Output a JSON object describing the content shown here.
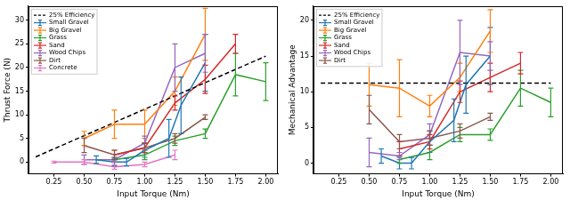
{
  "chart_data": [
    {
      "type": "line",
      "y_label": "Thrust Force (N)",
      "x_label": "Input Torque (Nm)",
      "xlim": [
        0.04,
        2.1
      ],
      "xticks": [
        0.25,
        {
          "value": 0.5,
          "label": "0.50"
        },
        0.75,
        {
          "value": 1,
          "label": "1.00"
        },
        1.25,
        {
          "value": 1.5,
          "label": "1.50"
        },
        1.75,
        {
          "value": 2,
          "label": "2.00"
        }
      ],
      "ylim": [
        -2.5,
        33
      ],
      "yticks": [
        0,
        5,
        10,
        15,
        20,
        25,
        30
      ],
      "grid": false,
      "legend": "upper left",
      "series": [
        {
          "name": "25% Efficiency",
          "color": "#000000",
          "line_style": "dashed",
          "x": [
            0.1,
            2.0
          ],
          "values": [
            1.1,
            22.4
          ]
        },
        {
          "name": "Small Gravel",
          "color": "#1f77b4",
          "x": [
            0.6,
            0.75,
            0.85,
            1.0,
            1.2,
            1.3,
            1.5
          ],
          "values": [
            0.5,
            0,
            0,
            2.5,
            5,
            12,
            21
          ],
          "errors": [
            0.8,
            0.8,
            0.8,
            1.5,
            4,
            6,
            6
          ]
        },
        {
          "name": "Big Gravel",
          "color": "#ff7f0e",
          "x": [
            0.5,
            0.75,
            1.0,
            1.25,
            1.5
          ],
          "values": [
            5,
            8,
            8,
            15,
            27
          ],
          "errors": [
            1.5,
            3,
            3,
            3,
            5.5
          ]
        },
        {
          "name": "Grass",
          "color": "#2ca02c",
          "x": [
            0.75,
            1.0,
            1.25,
            1.5,
            1.75,
            2.0
          ],
          "values": [
            0.5,
            1.5,
            4.5,
            6,
            18.5,
            17
          ],
          "errors": [
            0.5,
            1,
            1,
            1,
            4.5,
            4
          ]
        },
        {
          "name": "Sand",
          "color": "#d62728",
          "x": [
            0.75,
            1.0,
            1.25,
            1.5,
            1.75
          ],
          "values": [
            1.5,
            3,
            12.5,
            17.5,
            25
          ],
          "errors": [
            1,
            1,
            1.5,
            3,
            2
          ]
        },
        {
          "name": "Wood Chips",
          "color": "#9467bd",
          "x": [
            0.5,
            0.75,
            1.0,
            1.25,
            1.5
          ],
          "values": [
            0.5,
            0.5,
            4,
            20,
            23
          ],
          "errors": [
            1,
            0.5,
            1.5,
            5,
            4
          ]
        },
        {
          "name": "Dirt",
          "color": "#8c564b",
          "x": [
            0.5,
            0.75,
            1.0,
            1.25,
            1.5
          ],
          "values": [
            3.5,
            1.5,
            3,
            5,
            9.5
          ],
          "errors": [
            1.5,
            1,
            1,
            1,
            0.5
          ]
        },
        {
          "name": "Concrete",
          "color": "#e377c2",
          "x": [
            0.25,
            0.5,
            0.75,
            1.0,
            1.25
          ],
          "values": [
            0,
            0,
            -1,
            -0.5,
            1.5
          ],
          "errors": [
            0.2,
            0.5,
            0.5,
            0.5,
            1
          ]
        }
      ]
    },
    {
      "type": "line",
      "y_label": "Mechanical Advantage",
      "x_label": "Input Torque (Nm)",
      "xlim": [
        0.04,
        2.1
      ],
      "xticks": [
        0.25,
        {
          "value": 0.5,
          "label": "0.50"
        },
        0.75,
        {
          "value": 1,
          "label": "1.00"
        },
        1.25,
        {
          "value": 1.5,
          "label": "1.50"
        },
        1.75,
        {
          "value": 2,
          "label": "2.00"
        }
      ],
      "ylim": [
        -1.5,
        22
      ],
      "yticks": [
        0,
        5,
        10,
        15,
        20
      ],
      "grid": false,
      "legend": "upper left",
      "series": [
        {
          "name": "25% Efficiency",
          "color": "#000000",
          "line_style": "dashed",
          "x": [
            0.1,
            2.0
          ],
          "values": [
            11.2,
            11.2
          ]
        },
        {
          "name": "Small Gravel",
          "color": "#1f77b4",
          "x": [
            0.6,
            0.75,
            0.85,
            1.0,
            1.2,
            1.3,
            1.5
          ],
          "values": [
            1,
            0,
            0,
            3,
            6,
            11,
            15
          ],
          "errors": [
            1,
            0.8,
            0.8,
            1.5,
            3,
            4,
            4
          ]
        },
        {
          "name": "Big Gravel",
          "color": "#ff7f0e",
          "x": [
            0.5,
            0.75,
            1.0,
            1.25,
            1.5
          ],
          "values": [
            11,
            10.5,
            8,
            12,
            18.5
          ],
          "errors": [
            3,
            4,
            1.5,
            2,
            3
          ]
        },
        {
          "name": "Grass",
          "color": "#2ca02c",
          "x": [
            0.75,
            1.0,
            1.25,
            1.5,
            1.75,
            2.0
          ],
          "values": [
            0.5,
            1.5,
            4,
            4,
            10.5,
            8.5
          ],
          "errors": [
            0.5,
            1,
            1,
            0.8,
            2.5,
            2
          ]
        },
        {
          "name": "Sand",
          "color": "#d62728",
          "x": [
            0.75,
            1.0,
            1.25,
            1.5,
            1.75
          ],
          "values": [
            2,
            3,
            10,
            12,
            14
          ],
          "errors": [
            1,
            1,
            1.5,
            2,
            1.5
          ]
        },
        {
          "name": "Wood Chips",
          "color": "#9467bd",
          "x": [
            0.5,
            0.75,
            1.0,
            1.25,
            1.5
          ],
          "values": [
            1.5,
            1,
            4,
            15.5,
            15
          ],
          "errors": [
            2,
            0.5,
            1.5,
            4.5,
            2
          ]
        },
        {
          "name": "Dirt",
          "color": "#8c564b",
          "x": [
            0.5,
            0.75,
            1.0,
            1.25,
            1.5
          ],
          "values": [
            7.5,
            3,
            3.5,
            4.5,
            6.5
          ],
          "errors": [
            2,
            1,
            1,
            1,
            0.5
          ]
        }
      ]
    }
  ]
}
